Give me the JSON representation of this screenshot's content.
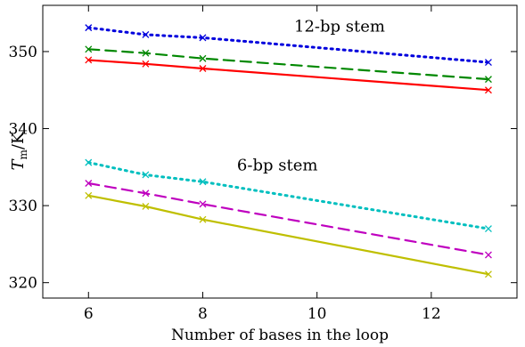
{
  "chart_data": {
    "type": "line",
    "xlabel": "Number of bases in the loop",
    "ylabel": {
      "main": "T",
      "sub": "m",
      "unit": "/K"
    },
    "xlim": [
      5.2,
      13.5
    ],
    "ylim": [
      318,
      356
    ],
    "xticks": [
      6,
      8,
      10,
      12
    ],
    "yticks": [
      320,
      330,
      340,
      350
    ],
    "x_tick_labels": [
      "6",
      "8",
      "10",
      "12"
    ],
    "y_tick_labels": [
      "320",
      "330",
      "340",
      "350"
    ],
    "grid": false,
    "annotations": [
      {
        "text": "12-bp stem",
        "x": 9.6,
        "y": 352.6
      },
      {
        "text": "6-bp stem",
        "x": 8.6,
        "y": 334.6
      }
    ],
    "series": [
      {
        "color": "#0000dd",
        "dash": "2,5",
        "x": [
          6,
          7,
          8,
          13
        ],
        "y": [
          353.1,
          352.2,
          351.8,
          348.6
        ]
      },
      {
        "color": "#008800",
        "dash": "12,7",
        "x": [
          6,
          7,
          8,
          13
        ],
        "y": [
          350.3,
          349.8,
          349.1,
          346.4
        ]
      },
      {
        "color": "#ff0000",
        "dash": "",
        "x": [
          6,
          7,
          8,
          13
        ],
        "y": [
          348.9,
          348.4,
          347.8,
          345.0
        ]
      },
      {
        "color": "#00bfbf",
        "dash": "2,5",
        "x": [
          6,
          7,
          8,
          13
        ],
        "y": [
          335.6,
          334.0,
          333.1,
          327.0
        ]
      },
      {
        "color": "#bf00bf",
        "dash": "12,7",
        "x": [
          6,
          7,
          8,
          13
        ],
        "y": [
          332.9,
          331.6,
          330.2,
          323.6
        ]
      },
      {
        "color": "#bfbf00",
        "dash": "",
        "x": [
          6,
          7,
          8,
          13
        ],
        "y": [
          331.3,
          329.9,
          328.2,
          321.1
        ]
      }
    ]
  }
}
